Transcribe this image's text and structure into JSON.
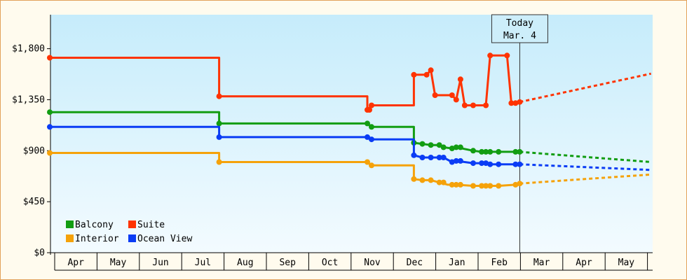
{
  "chart_data": {
    "type": "line",
    "title": "",
    "xlabel": "",
    "ylabel": "",
    "ylim": [
      0,
      2100
    ],
    "yticks": [
      {
        "value": 0,
        "label": "$0"
      },
      {
        "value": 450,
        "label": "$450"
      },
      {
        "value": 900,
        "label": "$900"
      },
      {
        "value": 1350,
        "label": "$1,350"
      },
      {
        "value": 1800,
        "label": "$1,800"
      }
    ],
    "categories": [
      "Apr",
      "May",
      "Jun",
      "Jul",
      "Aug",
      "Sep",
      "Oct",
      "Nov",
      "Dec",
      "Jan",
      "Feb",
      "Mar",
      "Apr",
      "May"
    ],
    "grid": false,
    "legend_position": "bottom-left",
    "today": {
      "line1": "Today",
      "line2": "Mar. 4",
      "x": 11.1
    },
    "series": [
      {
        "name": "Suite",
        "color": "#ff3300",
        "points": [
          [
            0,
            1720
          ],
          [
            4.0,
            1720
          ],
          [
            4.0,
            1380
          ],
          [
            7.5,
            1380
          ],
          [
            7.5,
            1260
          ],
          [
            7.6,
            1300
          ],
          [
            8.6,
            1300
          ],
          [
            8.6,
            1570
          ],
          [
            8.9,
            1570
          ],
          [
            9.0,
            1610
          ],
          [
            9.1,
            1390
          ],
          [
            9.5,
            1390
          ],
          [
            9.6,
            1350
          ],
          [
            9.7,
            1530
          ],
          [
            9.8,
            1300
          ],
          [
            10.0,
            1300
          ],
          [
            10.3,
            1300
          ],
          [
            10.4,
            1740
          ],
          [
            10.8,
            1740
          ],
          [
            10.9,
            1320
          ],
          [
            11.1,
            1330
          ]
        ],
        "projection": [
          [
            11.1,
            1330
          ],
          [
            14.2,
            1580
          ]
        ]
      },
      {
        "name": "Balcony",
        "color": "#129d12",
        "points": [
          [
            0,
            1240
          ],
          [
            4.0,
            1240
          ],
          [
            4.0,
            1140
          ],
          [
            7.5,
            1140
          ],
          [
            7.6,
            1110
          ],
          [
            8.6,
            1110
          ],
          [
            8.6,
            970
          ],
          [
            8.8,
            960
          ],
          [
            9.0,
            950
          ],
          [
            9.2,
            950
          ],
          [
            9.3,
            930
          ],
          [
            9.5,
            920
          ],
          [
            9.6,
            930
          ],
          [
            10.0,
            900
          ],
          [
            10.2,
            890
          ],
          [
            10.4,
            890
          ],
          [
            10.6,
            890
          ],
          [
            11.1,
            890
          ]
        ],
        "projection": [
          [
            11.1,
            890
          ],
          [
            14.2,
            800
          ]
        ]
      },
      {
        "name": "Ocean View",
        "color": "#0a3cf5",
        "points": [
          [
            0,
            1110
          ],
          [
            4.0,
            1110
          ],
          [
            4.0,
            1020
          ],
          [
            7.5,
            1020
          ],
          [
            7.6,
            1000
          ],
          [
            8.6,
            1000
          ],
          [
            8.6,
            860
          ],
          [
            8.8,
            840
          ],
          [
            9.0,
            840
          ],
          [
            9.2,
            840
          ],
          [
            9.3,
            840
          ],
          [
            9.5,
            800
          ],
          [
            9.6,
            810
          ],
          [
            10.0,
            790
          ],
          [
            10.2,
            790
          ],
          [
            10.4,
            780
          ],
          [
            10.6,
            780
          ],
          [
            11.1,
            780
          ]
        ],
        "projection": [
          [
            11.1,
            780
          ],
          [
            14.2,
            730
          ]
        ]
      },
      {
        "name": "Interior",
        "color": "#f5a20a",
        "points": [
          [
            0,
            880
          ],
          [
            4.0,
            880
          ],
          [
            4.0,
            800
          ],
          [
            7.5,
            800
          ],
          [
            7.6,
            770
          ],
          [
            8.6,
            770
          ],
          [
            8.6,
            650
          ],
          [
            8.8,
            640
          ],
          [
            9.0,
            640
          ],
          [
            9.2,
            620
          ],
          [
            9.4,
            600
          ],
          [
            9.6,
            600
          ],
          [
            10.0,
            590
          ],
          [
            10.2,
            590
          ],
          [
            10.4,
            590
          ],
          [
            10.6,
            590
          ],
          [
            11.0,
            600
          ],
          [
            11.1,
            610
          ]
        ],
        "projection": [
          [
            11.1,
            610
          ],
          [
            14.2,
            690
          ]
        ]
      }
    ],
    "markers": {
      "Suite": [
        0,
        4.0,
        7.5,
        7.55,
        7.6,
        8.6,
        8.9,
        9.0,
        9.1,
        9.5,
        9.6,
        9.7,
        9.8,
        10.0,
        10.3,
        10.4,
        10.8,
        10.9,
        11.0,
        11.1
      ],
      "Balcony": [
        0,
        4.0,
        7.5,
        7.6,
        8.6,
        8.8,
        9.0,
        9.2,
        9.3,
        9.5,
        9.6,
        9.7,
        10.0,
        10.2,
        10.3,
        10.4,
        10.6,
        11.0,
        11.1
      ],
      "Ocean View": [
        0,
        4.0,
        7.5,
        7.6,
        8.6,
        8.8,
        9.0,
        9.2,
        9.3,
        9.5,
        9.6,
        9.7,
        10.0,
        10.2,
        10.3,
        10.4,
        10.6,
        11.0,
        11.1
      ],
      "Interior": [
        0,
        4.0,
        7.5,
        7.6,
        8.6,
        8.8,
        9.0,
        9.2,
        9.3,
        9.5,
        9.6,
        9.7,
        10.0,
        10.2,
        10.3,
        10.4,
        10.6,
        11.0,
        11.1
      ]
    },
    "legend": [
      {
        "name": "Balcony",
        "color": "#129d12"
      },
      {
        "name": "Suite",
        "color": "#ff3300"
      },
      {
        "name": "Interior",
        "color": "#f5a20a"
      },
      {
        "name": "Ocean View",
        "color": "#0a3cf5"
      }
    ]
  }
}
